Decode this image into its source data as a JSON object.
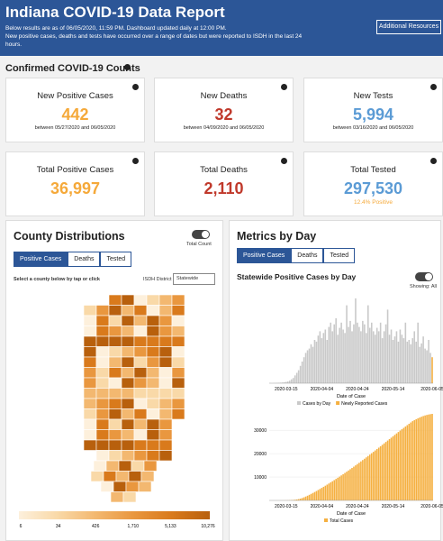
{
  "header": {
    "title": "Indiana COVID-19 Data Report",
    "subtitle_lines": [
      "Below results are as of 06/05/2020, 11:59 PM. Dashboard updated daily at 12:00 PM.",
      "New positive cases, deaths and tests have occurred over a range of dates but were reported to ISDH in the last 24 hours."
    ],
    "button": "Additional Resources"
  },
  "counts": {
    "title": "Confirmed COVID-19 Counts",
    "cards": [
      {
        "label": "New Positive Cases",
        "value": "442",
        "note": "between 05/27/2020 and 06/05/2020"
      },
      {
        "label": "New Deaths",
        "value": "32",
        "note": "between 04/09/2020 and 06/05/2020"
      },
      {
        "label": "New Tests",
        "value": "5,994",
        "note": "between 03/16/2020 and 06/05/2020"
      },
      {
        "label": "Total Positive Cases",
        "value": "36,997"
      },
      {
        "label": "Total Deaths",
        "value": "2,110"
      },
      {
        "label": "Total Tested",
        "value": "297,530",
        "note": "12.4% Positive"
      }
    ]
  },
  "county": {
    "title": "County Distributions",
    "toggle_label": "Total Count",
    "tabs": [
      "Positive Cases",
      "Deaths",
      "Tested"
    ],
    "instruction": "Select a county below by tap or click",
    "district_label": "ISDH District",
    "district_value": "Statewide",
    "legend_labels": [
      "6",
      "34",
      "426",
      "1,710",
      "5,133",
      "10,276"
    ]
  },
  "metrics": {
    "title": "Metrics by Day",
    "tabs": [
      "Positive Cases",
      "Deaths",
      "Tested"
    ],
    "toggle_label": "Showing: All"
  },
  "chart_data": [
    {
      "type": "bar",
      "title": "Statewide Positive Cases by Day",
      "x_label": "Date of Case",
      "categories": [
        null,
        null,
        null,
        null,
        null,
        null,
        null,
        null,
        null,
        "2020-03-15",
        null,
        null,
        null,
        null,
        null,
        null,
        null,
        null,
        null,
        null,
        null,
        null,
        null,
        null,
        null,
        null,
        null,
        null,
        null,
        "2020-04-04",
        null,
        null,
        null,
        null,
        null,
        null,
        null,
        null,
        null,
        null,
        null,
        null,
        null,
        null,
        null,
        null,
        null,
        null,
        null,
        "2020-04-24",
        null,
        null,
        null,
        null,
        null,
        null,
        null,
        null,
        null,
        null,
        null,
        null,
        null,
        null,
        null,
        null,
        null,
        null,
        null,
        "2020-05-14",
        null,
        null,
        null,
        null,
        null,
        null,
        null,
        null,
        null,
        null,
        null,
        null,
        null,
        null,
        null,
        null,
        null,
        null,
        null,
        null,
        null,
        "2020-06-05"
      ],
      "series": [
        {
          "name": "Cases by Day",
          "color": "#c9c9c9",
          "values": [
            1,
            0,
            1,
            2,
            3,
            4,
            6,
            8,
            10,
            15,
            20,
            30,
            45,
            60,
            90,
            120,
            150,
            200,
            250,
            300,
            350,
            380,
            400,
            450,
            420,
            500,
            480,
            550,
            600,
            520,
            580,
            620,
            500,
            650,
            700,
            600,
            680,
            750,
            560,
            640,
            700,
            620,
            580,
            900,
            650,
            720,
            600,
            680,
            980,
            700,
            650,
            600,
            720,
            680,
            580,
            900,
            640,
            700,
            600,
            560,
            640,
            600,
            700,
            520,
            600,
            680,
            850,
            560,
            620,
            500,
            540,
            600,
            480,
            620,
            560,
            520,
            700,
            480,
            500,
            450,
            520,
            600,
            480,
            700,
            420,
            460,
            540,
            400,
            380,
            500,
            350,
            null
          ]
        },
        {
          "name": "Newly Reported Cases",
          "color": "#f5b041",
          "values": [
            null,
            null,
            null,
            null,
            null,
            null,
            null,
            null,
            null,
            null,
            null,
            null,
            null,
            null,
            null,
            null,
            null,
            null,
            null,
            null,
            null,
            null,
            null,
            null,
            null,
            null,
            null,
            null,
            null,
            null,
            null,
            null,
            null,
            null,
            null,
            null,
            null,
            null,
            null,
            null,
            null,
            null,
            null,
            null,
            null,
            null,
            null,
            null,
            null,
            null,
            null,
            null,
            null,
            null,
            null,
            null,
            null,
            null,
            null,
            null,
            null,
            null,
            null,
            null,
            null,
            null,
            null,
            null,
            null,
            null,
            null,
            null,
            null,
            null,
            null,
            null,
            null,
            null,
            null,
            null,
            null,
            null,
            null,
            null,
            null,
            null,
            null,
            null,
            null,
            null,
            null,
            300
          ]
        }
      ],
      "ylim": [
        0,
        1000
      ]
    },
    {
      "type": "bar",
      "x_label": "Date of Case",
      "categories": [
        null,
        null,
        null,
        null,
        null,
        null,
        null,
        null,
        null,
        "2020-03-15",
        null,
        null,
        null,
        null,
        null,
        null,
        null,
        null,
        null,
        null,
        null,
        null,
        null,
        null,
        null,
        null,
        null,
        null,
        null,
        "2020-04-04",
        null,
        null,
        null,
        null,
        null,
        null,
        null,
        null,
        null,
        null,
        null,
        null,
        null,
        null,
        null,
        null,
        null,
        null,
        null,
        "2020-04-24",
        null,
        null,
        null,
        null,
        null,
        null,
        null,
        null,
        null,
        null,
        null,
        null,
        null,
        null,
        null,
        null,
        null,
        null,
        null,
        "2020-05-14",
        null,
        null,
        null,
        null,
        null,
        null,
        null,
        null,
        null,
        null,
        null,
        null,
        null,
        null,
        null,
        null,
        null,
        null,
        null,
        null,
        null,
        "2020-06-05"
      ],
      "series": [
        {
          "name": "Total Cases",
          "color": "#f5b041",
          "values": [
            0,
            1,
            2,
            4,
            7,
            11,
            17,
            25,
            35,
            50,
            70,
            100,
            145,
            205,
            295,
            415,
            565,
            765,
            1015,
            1315,
            1650,
            2000,
            2380,
            2780,
            3180,
            3600,
            4020,
            4460,
            4910,
            5360,
            5820,
            6280,
            6750,
            7220,
            7700,
            8190,
            8680,
            9180,
            9680,
            10190,
            10700,
            11220,
            11740,
            12270,
            12800,
            13340,
            13880,
            14430,
            14990,
            15550,
            16110,
            16680,
            17250,
            17830,
            18410,
            18990,
            19580,
            20170,
            20760,
            21360,
            21960,
            22560,
            23160,
            23770,
            24380,
            24990,
            25600,
            26210,
            26820,
            27430,
            28040,
            28640,
            29240,
            29840,
            30430,
            31020,
            31600,
            32180,
            32750,
            33320,
            33880,
            34300,
            34700,
            35080,
            35440,
            35780,
            36080,
            36330,
            36540,
            36720,
            36870,
            36997
          ]
        }
      ],
      "ylim": [
        0,
        37000
      ],
      "yticks": [
        10000,
        20000,
        30000
      ]
    }
  ]
}
